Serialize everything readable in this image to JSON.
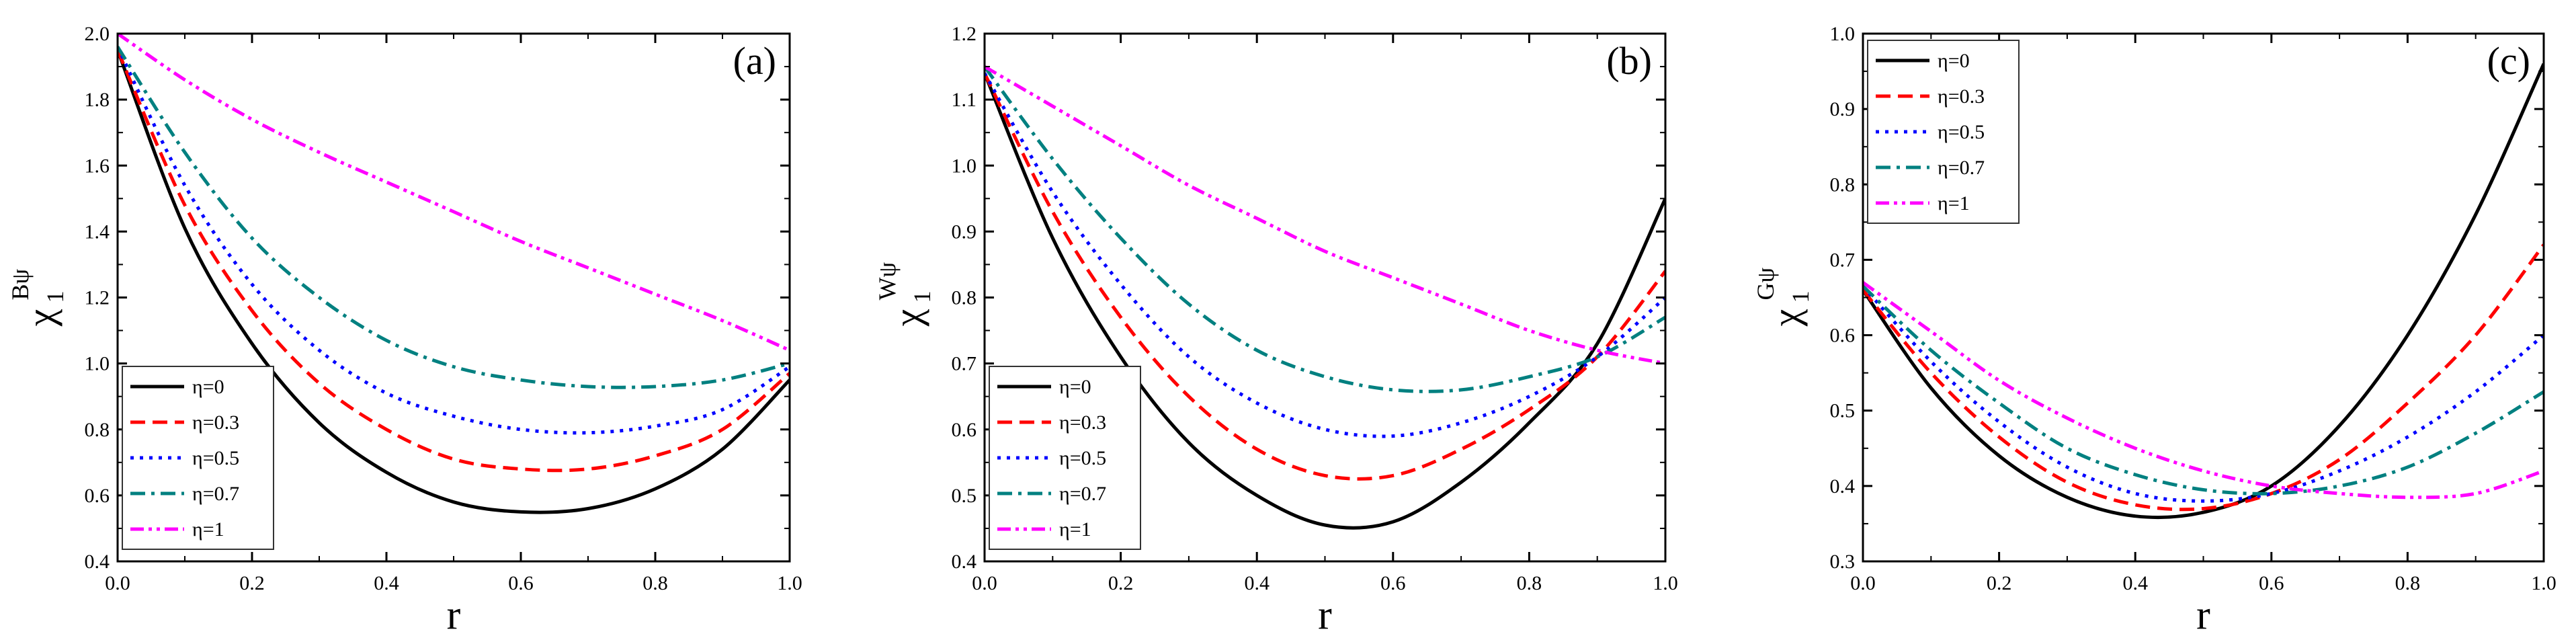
{
  "chart_data": [
    {
      "type": "line",
      "panel_label": "(a)",
      "xlabel": "r",
      "ylabel_main": "χ",
      "ylabel_sub": "1",
      "ylabel_sup": "Bψ",
      "xlim": [
        0.0,
        1.0
      ],
      "ylim": [
        0.4,
        2.0
      ],
      "xticks": [
        0.0,
        0.2,
        0.4,
        0.6,
        0.8,
        1.0
      ],
      "xtick_labels": [
        "0.0",
        "0.2",
        "0.4",
        "0.6",
        "0.8",
        "1.0"
      ],
      "yticks": [
        0.4,
        0.6,
        0.8,
        1.0,
        1.2,
        1.4,
        1.6,
        1.8,
        2.0
      ],
      "ytick_labels": [
        "0.4",
        "0.6",
        "0.8",
        "1.0",
        "1.2",
        "1.4",
        "1.6",
        "1.8",
        "2.0"
      ],
      "legend_position": "bottom-left",
      "x": [
        0.0,
        0.1,
        0.2,
        0.3,
        0.4,
        0.5,
        0.6,
        0.7,
        0.8,
        0.9,
        1.0
      ],
      "series": [
        {
          "name": "η=0",
          "color": "#000000",
          "dash": "solid",
          "values": [
            1.95,
            1.41,
            1.06,
            0.82,
            0.67,
            0.58,
            0.55,
            0.56,
            0.62,
            0.74,
            0.95
          ]
        },
        {
          "name": "η=0.3",
          "color": "#ff0000",
          "dash": "dash",
          "values": [
            1.95,
            1.48,
            1.16,
            0.94,
            0.8,
            0.71,
            0.68,
            0.68,
            0.72,
            0.8,
            0.97
          ]
        },
        {
          "name": "η=0.5",
          "color": "#0000ff",
          "dash": "dot",
          "values": [
            1.96,
            1.54,
            1.24,
            1.04,
            0.91,
            0.84,
            0.8,
            0.79,
            0.81,
            0.86,
            0.99
          ]
        },
        {
          "name": "η=0.7",
          "color": "#008080",
          "dash": "dashdot",
          "values": [
            1.96,
            1.64,
            1.38,
            1.2,
            1.07,
            0.99,
            0.95,
            0.93,
            0.93,
            0.95,
            1.0
          ]
        },
        {
          "name": "η=1",
          "color": "#ff00ff",
          "dash": "dashdotdot",
          "values": [
            2.0,
            1.86,
            1.74,
            1.64,
            1.55,
            1.46,
            1.37,
            1.29,
            1.21,
            1.13,
            1.04
          ]
        }
      ]
    },
    {
      "type": "line",
      "panel_label": "(b)",
      "xlabel": "r",
      "ylabel_main": "χ",
      "ylabel_sub": "1",
      "ylabel_sup": "Wψ",
      "xlim": [
        0.0,
        1.0
      ],
      "ylim": [
        0.4,
        1.2
      ],
      "xticks": [
        0.0,
        0.2,
        0.4,
        0.6,
        0.8,
        1.0
      ],
      "xtick_labels": [
        "0.0",
        "0.2",
        "0.4",
        "0.6",
        "0.8",
        "1.0"
      ],
      "yticks": [
        0.4,
        0.5,
        0.6,
        0.7,
        0.8,
        0.9,
        1.0,
        1.1,
        1.2
      ],
      "ytick_labels": [
        "0.4",
        "0.5",
        "0.6",
        "0.7",
        "0.8",
        "0.9",
        "1.0",
        "1.1",
        "1.2"
      ],
      "legend_position": "bottom-left",
      "x": [
        0.0,
        0.1,
        0.2,
        0.3,
        0.4,
        0.5,
        0.6,
        0.7,
        0.8,
        0.9,
        1.0
      ],
      "series": [
        {
          "name": "η=0",
          "color": "#000000",
          "dash": "solid",
          "values": [
            1.14,
            0.89,
            0.71,
            0.58,
            0.5,
            0.455,
            0.46,
            0.52,
            0.61,
            0.73,
            0.95
          ]
        },
        {
          "name": "η=0.3",
          "color": "#ff0000",
          "dash": "dash",
          "values": [
            1.14,
            0.93,
            0.77,
            0.65,
            0.57,
            0.53,
            0.53,
            0.57,
            0.63,
            0.71,
            0.84
          ]
        },
        {
          "name": "η=0.5",
          "color": "#0000ff",
          "dash": "dot",
          "values": [
            1.14,
            0.96,
            0.82,
            0.71,
            0.64,
            0.6,
            0.59,
            0.61,
            0.65,
            0.71,
            0.8
          ]
        },
        {
          "name": "η=0.7",
          "color": "#008080",
          "dash": "dashdot",
          "values": [
            1.15,
            1.01,
            0.89,
            0.79,
            0.72,
            0.68,
            0.66,
            0.66,
            0.68,
            0.71,
            0.77
          ]
        },
        {
          "name": "η=1",
          "color": "#ff00ff",
          "dash": "dashdotdot",
          "values": [
            1.15,
            1.09,
            1.03,
            0.97,
            0.92,
            0.87,
            0.83,
            0.79,
            0.75,
            0.72,
            0.7
          ]
        }
      ]
    },
    {
      "type": "line",
      "panel_label": "(c)",
      "xlabel": "r",
      "ylabel_main": "χ",
      "ylabel_sub": "1",
      "ylabel_sup": "Gψ",
      "xlim": [
        0.0,
        1.0
      ],
      "ylim": [
        0.3,
        1.0
      ],
      "xticks": [
        0.0,
        0.2,
        0.4,
        0.6,
        0.8,
        1.0
      ],
      "xtick_labels": [
        "0.0",
        "0.2",
        "0.4",
        "0.6",
        "0.8",
        "1.0"
      ],
      "yticks": [
        0.3,
        0.4,
        0.5,
        0.6,
        0.7,
        0.8,
        0.9,
        1.0
      ],
      "ytick_labels": [
        "0.3",
        "0.4",
        "0.5",
        "0.6",
        "0.7",
        "0.8",
        "0.9",
        "1.0"
      ],
      "legend_position": "top-left",
      "x": [
        0.0,
        0.1,
        0.2,
        0.3,
        0.4,
        0.5,
        0.6,
        0.7,
        0.8,
        0.9,
        1.0
      ],
      "series": [
        {
          "name": "η=0",
          "color": "#000000",
          "dash": "solid",
          "values": [
            0.66,
            0.53,
            0.44,
            0.385,
            0.36,
            0.365,
            0.4,
            0.48,
            0.6,
            0.76,
            0.96
          ]
        },
        {
          "name": "η=0.3",
          "color": "#ff0000",
          "dash": "dash",
          "values": [
            0.66,
            0.55,
            0.465,
            0.405,
            0.375,
            0.37,
            0.39,
            0.435,
            0.51,
            0.6,
            0.72
          ]
        },
        {
          "name": "η=0.5",
          "color": "#0000ff",
          "dash": "dot",
          "values": [
            0.665,
            0.565,
            0.485,
            0.425,
            0.39,
            0.38,
            0.39,
            0.42,
            0.465,
            0.525,
            0.6
          ]
        },
        {
          "name": "η=0.7",
          "color": "#008080",
          "dash": "dashdot",
          "values": [
            0.665,
            0.58,
            0.51,
            0.45,
            0.415,
            0.395,
            0.39,
            0.4,
            0.425,
            0.47,
            0.525
          ]
        },
        {
          "name": "η=1",
          "color": "#ff00ff",
          "dash": "dashdotdot",
          "values": [
            0.67,
            0.605,
            0.54,
            0.49,
            0.45,
            0.42,
            0.4,
            0.39,
            0.385,
            0.39,
            0.42
          ]
        }
      ]
    }
  ]
}
